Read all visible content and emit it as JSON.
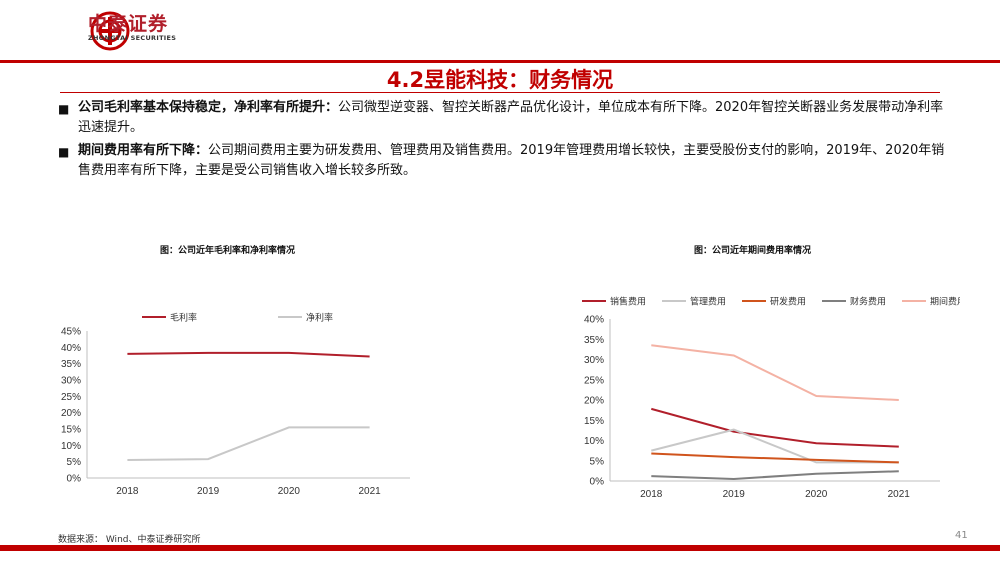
{
  "header": {
    "company_cn": "中泰证券",
    "company_en": "ZHONGTAI SECURITIES",
    "brand_color": "#c00000"
  },
  "slide": {
    "title": "4.2昱能科技：财务情况"
  },
  "bullets": [
    {
      "lead": "公司毛利率基本保持稳定，净利率有所提升：",
      "text": "公司微型逆变器、智控关断器产品优化设计，单位成本有所下降。2020年智控关断器业务发展带动净利率迅速提升。"
    },
    {
      "lead": "期间费用率有所下降：",
      "text": "公司期间费用主要为研发费用、管理费用及销售费用。2019年管理费用增长较快，主要受股份支付的影响，2019年、2020年销售费用率有所下降，主要是受公司销售收入增长较多所致。"
    }
  ],
  "charts": {
    "left_title": "图：公司近年毛利率和净利率情况",
    "right_title": "图：公司近年期间费用率情况"
  },
  "chart_data": [
    {
      "type": "line",
      "title": "图：公司近年毛利率和净利率情况",
      "categories": [
        "2018",
        "2019",
        "2020",
        "2021"
      ],
      "series": [
        {
          "name": "毛利率",
          "values": [
            38.0,
            38.3,
            38.3,
            37.2
          ],
          "color": "#b11f2b"
        },
        {
          "name": "净利率",
          "values": [
            5.5,
            5.8,
            15.5,
            15.5
          ],
          "color": "#c8c8c8"
        }
      ],
      "ylim": [
        0,
        45
      ],
      "yticks": [
        "0%",
        "5%",
        "10%",
        "15%",
        "20%",
        "25%",
        "30%",
        "35%",
        "40%",
        "45%"
      ],
      "legend": "top",
      "grid": false
    },
    {
      "type": "line",
      "title": "图：公司近年期间费用率情况",
      "categories": [
        "2018",
        "2019",
        "2020",
        "2021"
      ],
      "series": [
        {
          "name": "销售费用",
          "values": [
            17.8,
            12.2,
            9.3,
            8.5
          ],
          "color": "#b11f2b"
        },
        {
          "name": "管理费用",
          "values": [
            7.5,
            12.7,
            4.6,
            4.6
          ],
          "color": "#c8c8c8"
        },
        {
          "name": "研发费用",
          "values": [
            6.8,
            5.9,
            5.2,
            4.6
          ],
          "color": "#d0541c"
        },
        {
          "name": "财务费用",
          "values": [
            1.2,
            0.5,
            1.8,
            2.4
          ],
          "color": "#7f7f7f"
        },
        {
          "name": "期间费用率",
          "values": [
            33.5,
            31.0,
            21.0,
            20.0
          ],
          "color": "#f4b2a4"
        }
      ],
      "ylim": [
        0,
        40
      ],
      "yticks": [
        "0%",
        "5%",
        "10%",
        "15%",
        "20%",
        "25%",
        "30%",
        "35%",
        "40%"
      ],
      "legend": "top",
      "grid": false
    }
  ],
  "footer": {
    "source": "数据来源： Wind、中泰证券研究所",
    "page": "41"
  }
}
